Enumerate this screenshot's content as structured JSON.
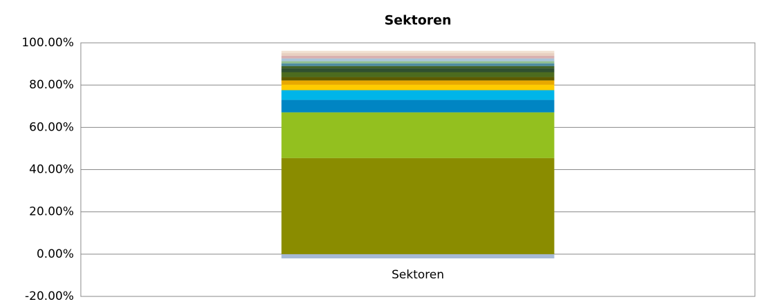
{
  "chart_data": {
    "type": "stacked_bar",
    "title": "Sektoren",
    "categories": [
      "Sektoren"
    ],
    "series": [
      {
        "color": "#a6b9d6",
        "values": [
          -2
        ]
      },
      {
        "color": "#8a8c00",
        "values": [
          45.5
        ]
      },
      {
        "color": "#93c01f",
        "values": [
          21.6
        ]
      },
      {
        "color": "#0085c3",
        "values": [
          5.9
        ]
      },
      {
        "color": "#00b5e8",
        "values": [
          4.6
        ]
      },
      {
        "color": "#ffcc00",
        "values": [
          2.6
        ]
      },
      {
        "color": "#e8a800",
        "values": [
          2
        ]
      },
      {
        "color": "#5c5a00",
        "values": [
          1.6
        ]
      },
      {
        "color": "#4c6b1e",
        "values": [
          2.3
        ]
      },
      {
        "color": "#2f4f2f",
        "values": [
          1.9
        ]
      },
      {
        "color": "#3d5e1e",
        "values": [
          1
        ]
      },
      {
        "color": "#4f8ca0",
        "values": [
          1.3
        ]
      },
      {
        "color": "#8fbf8f",
        "values": [
          1
        ]
      },
      {
        "color": "#a8c4d8",
        "values": [
          1.3
        ]
      },
      {
        "color": "#d8b0b0",
        "values": [
          1.3
        ]
      },
      {
        "color": "#e8d0c0",
        "values": [
          1.3
        ]
      },
      {
        "color": "#f0e0d0",
        "values": [
          1
        ]
      }
    ],
    "ylim": [
      -20,
      100
    ],
    "yticks": [
      {
        "value": -20,
        "label": "-20.00%"
      },
      {
        "value": 0,
        "label": "0.00%"
      },
      {
        "value": 20,
        "label": "20.00%"
      },
      {
        "value": 40,
        "label": "40.00%"
      },
      {
        "value": 60,
        "label": "60.00%"
      },
      {
        "value": 80,
        "label": "80.00%"
      },
      {
        "value": 100,
        "label": "100.00%"
      }
    ],
    "grid": true
  }
}
